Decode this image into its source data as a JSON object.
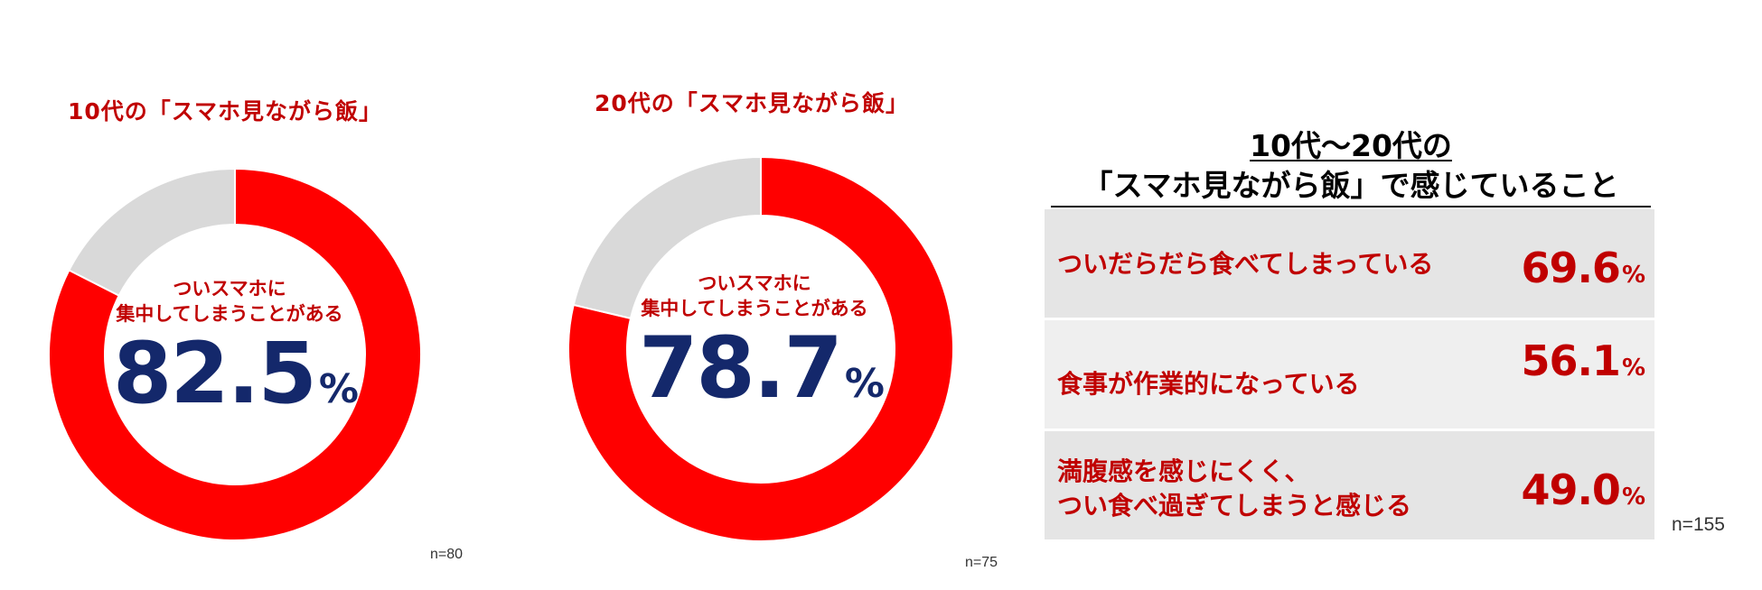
{
  "chart_data": [
    {
      "type": "pie",
      "title": "10代の「スマホ見ながら飯」",
      "categories": [
        "ついスマホに集中してしまうことがある",
        ""
      ],
      "values": [
        82.5,
        17.5
      ],
      "center_label": [
        "ついスマホに",
        "集中してしまうことがある"
      ],
      "center_value": "82.5",
      "unit": "%",
      "sample_size": "n=80",
      "colors": [
        "#ff0000",
        "#d9d9d9"
      ]
    },
    {
      "type": "pie",
      "title": "20代の「スマホ見ながら飯」",
      "categories": [
        "ついスマホに集中してしまうことがある",
        ""
      ],
      "values": [
        78.7,
        21.3
      ],
      "center_label": [
        "ついスマホに",
        "集中してしまうことがある"
      ],
      "center_value": "78.7",
      "unit": "%",
      "sample_size": "n=75",
      "colors": [
        "#ff0000",
        "#d9d9d9"
      ]
    },
    {
      "type": "table",
      "title": [
        "10代〜20代の",
        "「スマホ見ながら飯」で感じていること"
      ],
      "rows": [
        {
          "label": [
            "ついだらだら食べてしまっている"
          ],
          "value": "69.6",
          "unit": "%"
        },
        {
          "label": [
            "食事が作業的になっている"
          ],
          "value": "56.1",
          "unit": "%"
        },
        {
          "label": [
            "満腹感を感じにくく、",
            "つい食べ過ぎてしまうと感じる"
          ],
          "value": "49.0",
          "unit": "%"
        }
      ],
      "sample_size": "n=155"
    }
  ],
  "colors": {
    "accent_red": "#ff0000",
    "text_red": "#c00000",
    "remainder_gray": "#d9d9d9",
    "value_navy": "#14286b"
  }
}
